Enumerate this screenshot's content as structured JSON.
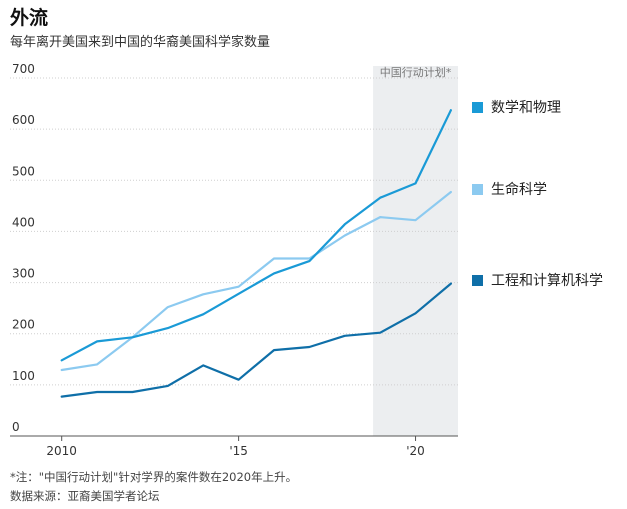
{
  "header": {
    "title": "外流",
    "subtitle": "每年离开美国来到中国的华裔美国科学家数量"
  },
  "footer": {
    "note": "*注：\"中国行动计划\"针对学界的案件数在2020年上升。",
    "source": "数据来源：亚裔美国学者论坛"
  },
  "colors": {
    "math_physics": "#1a9ad6",
    "life_science": "#8ccaf0",
    "engineering_cs": "#0f6fa8",
    "band": "#eceef0",
    "grid": "#cfcfcf"
  },
  "chart_data": {
    "type": "line",
    "x": [
      2010,
      2011,
      2012,
      2013,
      2014,
      2015,
      2016,
      2017,
      2018,
      2019,
      2020,
      2021
    ],
    "xlim": [
      2009.5,
      2021.2
    ],
    "ylim": [
      0,
      700
    ],
    "yticks": [
      0,
      100,
      200,
      300,
      400,
      500,
      600,
      700
    ],
    "xticks": [
      {
        "value": 2010,
        "label": "2010"
      },
      {
        "value": 2015,
        "label": "'15"
      },
      {
        "value": 2020,
        "label": "'20"
      }
    ],
    "grid": true,
    "legend_position": "right",
    "band": {
      "x_start": 2018.8,
      "x_end": 2021.2,
      "label": "中国行动计划*"
    },
    "series": [
      {
        "key": "math_physics",
        "name": "数学和物理",
        "values": [
          148,
          185,
          193,
          211,
          238,
          278,
          318,
          342,
          414,
          466,
          494,
          637
        ]
      },
      {
        "key": "life_science",
        "name": "生命科学",
        "values": [
          129,
          140,
          193,
          252,
          277,
          292,
          347,
          347,
          392,
          428,
          422,
          477
        ]
      },
      {
        "key": "engineering_cs",
        "name": "工程和计算机科学",
        "values": [
          77,
          86,
          86,
          98,
          138,
          110,
          168,
          174,
          196,
          202,
          240,
          298
        ]
      }
    ]
  }
}
